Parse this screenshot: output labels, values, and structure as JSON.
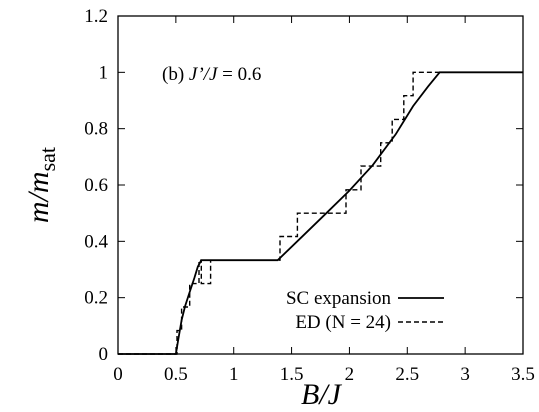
{
  "chart_data": {
    "type": "line",
    "xlabel": "B/J",
    "ylabel_main": "m/m",
    "ylabel_sub": "sat",
    "xlim": [
      0,
      3.5
    ],
    "ylim": [
      0,
      1.2
    ],
    "xticks": [
      0,
      0.5,
      1,
      1.5,
      2,
      2.5,
      3,
      3.5
    ],
    "xtick_labels": [
      "0",
      "0.5",
      "1",
      "1.5",
      "2",
      "2.5",
      "3",
      "3.5"
    ],
    "yticks": [
      0,
      0.2,
      0.4,
      0.6,
      0.8,
      1,
      1.2
    ],
    "ytick_labels": [
      "0",
      "0.2",
      "0.4",
      "0.6",
      "0.8",
      "1",
      "1.2"
    ],
    "annotation": {
      "prefix": "(b) ",
      "italic": "J’/J",
      "suffix": " = 0.6"
    },
    "legend_position": "bottom-right",
    "grid": false,
    "series": [
      {
        "name": "SC expansion",
        "style": "solid",
        "points": [
          [
            0,
            0
          ],
          [
            0.5,
            0
          ],
          [
            0.52,
            0.05
          ],
          [
            0.55,
            0.12
          ],
          [
            0.58,
            0.17
          ],
          [
            0.62,
            0.22
          ],
          [
            0.66,
            0.27
          ],
          [
            0.69,
            0.31
          ],
          [
            0.72,
            0.333
          ],
          [
            1.38,
            0.333
          ],
          [
            1.6,
            0.42
          ],
          [
            1.8,
            0.5
          ],
          [
            2.0,
            0.58
          ],
          [
            2.2,
            0.67
          ],
          [
            2.4,
            0.78
          ],
          [
            2.55,
            0.88
          ],
          [
            2.68,
            0.95
          ],
          [
            2.78,
            1.0
          ],
          [
            3.5,
            1.0
          ]
        ]
      },
      {
        "name": "ED (N = 24)",
        "style": "dashed",
        "points": [
          [
            0,
            0
          ],
          [
            0.51,
            0
          ],
          [
            0.51,
            0.083
          ],
          [
            0.55,
            0.083
          ],
          [
            0.55,
            0.167
          ],
          [
            0.62,
            0.167
          ],
          [
            0.62,
            0.25
          ],
          [
            0.7,
            0.25
          ],
          [
            0.7,
            0.333
          ],
          [
            0.8,
            0.333
          ],
          [
            0.8,
            0.25
          ],
          [
            0.72,
            0.25
          ],
          [
            0.72,
            0.333
          ],
          [
            1.4,
            0.333
          ],
          [
            1.4,
            0.417
          ],
          [
            1.55,
            0.417
          ],
          [
            1.55,
            0.5
          ],
          [
            1.97,
            0.5
          ],
          [
            1.97,
            0.583
          ],
          [
            2.1,
            0.583
          ],
          [
            2.1,
            0.667
          ],
          [
            2.27,
            0.667
          ],
          [
            2.27,
            0.75
          ],
          [
            2.37,
            0.75
          ],
          [
            2.37,
            0.833
          ],
          [
            2.47,
            0.833
          ],
          [
            2.47,
            0.917
          ],
          [
            2.55,
            0.917
          ],
          [
            2.55,
            1.0
          ],
          [
            3.5,
            1.0
          ]
        ]
      }
    ]
  }
}
